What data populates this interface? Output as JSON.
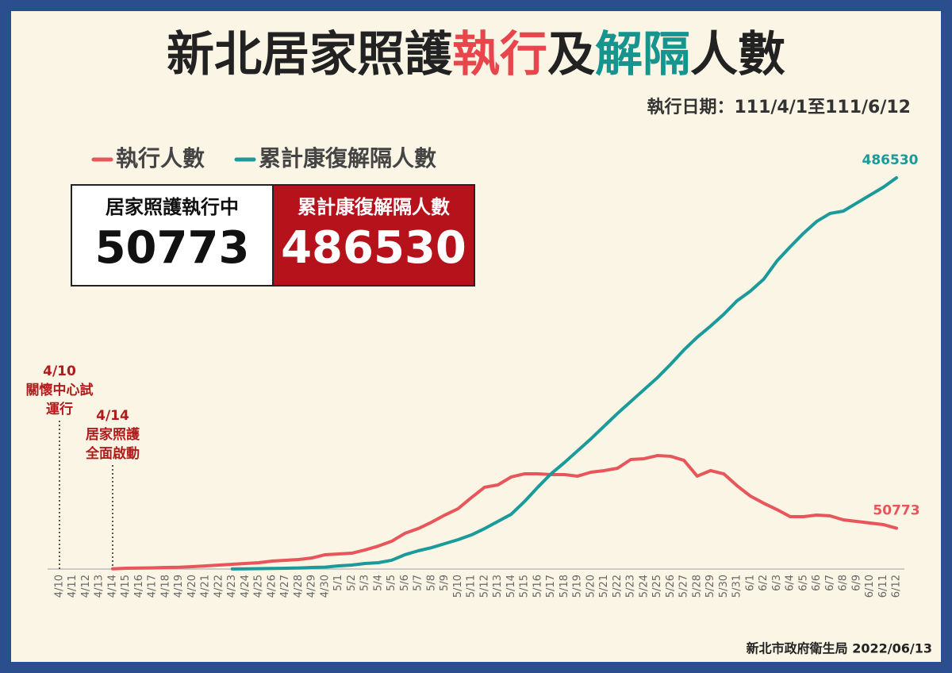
{
  "chart_data": {
    "type": "line",
    "title_parts": [
      "新北居家照護",
      "執行",
      "及",
      "解隔",
      "人數"
    ],
    "subtitle": "執行日期：111/4/1至111/6/12",
    "summary": [
      {
        "label": "居家照護執行中",
        "value": 50773
      },
      {
        "label": "累計康復解隔人數",
        "value": 486530
      }
    ],
    "categories": [
      "4/10",
      "4/11",
      "4/12",
      "4/13",
      "4/14",
      "4/15",
      "4/16",
      "4/17",
      "4/18",
      "4/19",
      "4/20",
      "4/21",
      "4/22",
      "4/23",
      "4/24",
      "4/25",
      "4/26",
      "4/27",
      "4/28",
      "4/29",
      "4/30",
      "5/1",
      "5/2",
      "5/3",
      "5/4",
      "5/5",
      "5/6",
      "5/7",
      "5/8",
      "5/9",
      "5/10",
      "5/11",
      "5/12",
      "5/13",
      "5/14",
      "5/15",
      "5/16",
      "5/17",
      "5/18",
      "5/19",
      "5/20",
      "5/21",
      "5/22",
      "5/23",
      "5/24",
      "5/25",
      "5/26",
      "5/27",
      "5/28",
      "5/29",
      "5/30",
      "5/31",
      "6/1",
      "6/2",
      "6/3",
      "6/4",
      "6/5",
      "6/6",
      "6/7",
      "6/8",
      "6/9",
      "6/10",
      "6/11",
      "6/12"
    ],
    "series": [
      {
        "name": "執行人數",
        "color": "#e8555a",
        "values": [
          null,
          null,
          null,
          null,
          200,
          1000,
          1200,
          1500,
          2000,
          2200,
          3000,
          3900,
          4900,
          5900,
          6900,
          7900,
          9900,
          10900,
          11800,
          13800,
          17800,
          18800,
          19700,
          23700,
          28600,
          34500,
          44400,
          50300,
          58200,
          67100,
          75000,
          88800,
          101700,
          104600,
          114500,
          118400,
          118400,
          117500,
          117500,
          115500,
          120400,
          122400,
          125300,
          136200,
          137200,
          141100,
          140200,
          135200,
          115500,
          122400,
          118400,
          103600,
          90800,
          81900,
          74000,
          65100,
          65100,
          67100,
          66100,
          61200,
          59200,
          57200,
          55300,
          50773
        ]
      },
      {
        "name": "累計康復解隔人數",
        "color": "#1a9a9a",
        "values": [
          null,
          null,
          null,
          null,
          null,
          null,
          null,
          null,
          null,
          null,
          null,
          null,
          null,
          100,
          300,
          500,
          700,
          1000,
          1300,
          2000,
          2300,
          3900,
          4900,
          6900,
          7900,
          10900,
          17800,
          22700,
          26600,
          31600,
          36500,
          42400,
          50300,
          59200,
          68100,
          83900,
          101700,
          118400,
          132300,
          147100,
          161900,
          177700,
          193500,
          208300,
          223100,
          237900,
          254600,
          272400,
          288200,
          302000,
          316800,
          333600,
          345500,
          360300,
          383000,
          400700,
          417500,
          432300,
          442200,
          445100,
          455000,
          464900,
          474700,
          486530
        ]
      }
    ],
    "annotations": [
      {
        "date": "4/10",
        "text": [
          "關懷中心試",
          "運行"
        ]
      },
      {
        "date": "4/14",
        "text": [
          "居家照護",
          "全面啟動"
        ]
      }
    ],
    "source": "新北市政府衛生局 2022/06/13"
  }
}
